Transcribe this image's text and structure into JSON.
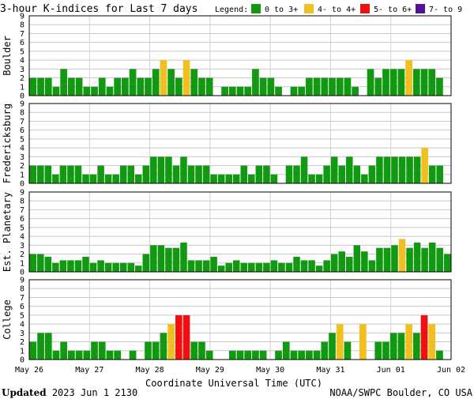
{
  "chart_data": {
    "type": "bar",
    "title": "3-hour K-indices for Last 7 days",
    "xlabel": "Coordinate Universal Time (UTC)",
    "x_tick_labels": [
      "May 26",
      "May 27",
      "May 28",
      "May 29",
      "May 30",
      "May 31",
      "Jun 01",
      "Jun 02"
    ],
    "ylim": [
      0,
      9
    ],
    "y_ticks": [
      "0",
      "1",
      "2",
      "3",
      "4",
      "5",
      "6",
      "7",
      "8",
      "9"
    ],
    "grid": true,
    "legend_placement": "top",
    "legend": {
      "title": "Legend:",
      "entries": [
        {
          "label": "0 to 3+",
          "color": "#119911"
        },
        {
          "label": "4- to 4+",
          "color": "#f0c020"
        },
        {
          "label": "5- to 6+",
          "color": "#ee1111"
        },
        {
          "label": "7- to 9",
          "color": "#551199"
        }
      ]
    },
    "panels": [
      {
        "label": "Boulder",
        "values": [
          2,
          2,
          2,
          1,
          3,
          2,
          2,
          1,
          1,
          2,
          1,
          2,
          2,
          3,
          2,
          2,
          3,
          4,
          3,
          2,
          4,
          3,
          2,
          2,
          0,
          1,
          1,
          1,
          1,
          3,
          2,
          2,
          1,
          0,
          1,
          1,
          2,
          2,
          2,
          2,
          2,
          2,
          1,
          0,
          3,
          2,
          3,
          3,
          3,
          4,
          3,
          3,
          3,
          2,
          0
        ]
      },
      {
        "label": "Fredericksburg",
        "values": [
          2,
          2,
          2,
          1,
          2,
          2,
          2,
          1,
          1,
          2,
          1,
          1,
          2,
          2,
          1,
          2,
          3,
          3,
          3,
          2,
          3,
          2,
          2,
          2,
          1,
          1,
          1,
          1,
          2,
          1,
          2,
          2,
          1,
          0,
          2,
          2,
          3,
          1,
          1,
          2,
          3,
          2,
          3,
          2,
          1,
          2,
          3,
          3,
          3,
          3,
          3,
          3,
          4,
          2,
          2,
          0
        ]
      },
      {
        "label": "Est. Planetary",
        "values": [
          2,
          2,
          1.7,
          1,
          1.3,
          1.3,
          1.3,
          1.7,
          1,
          1.3,
          1,
          1,
          1,
          1,
          0.7,
          2,
          3,
          3,
          2.7,
          2.7,
          3.3,
          1.3,
          1.3,
          1.3,
          1.7,
          0.7,
          1,
          1.3,
          1,
          1,
          1,
          1,
          1.3,
          1,
          1,
          1.7,
          1.3,
          1.3,
          0.7,
          1.3,
          2,
          2.3,
          1.7,
          3,
          2.3,
          1.3,
          2.7,
          2.7,
          3,
          3.7,
          2.7,
          3.3,
          2.7,
          3.3,
          2.7,
          2
        ]
      },
      {
        "label": "College",
        "values": [
          2,
          3,
          3,
          1,
          2,
          1,
          1,
          1,
          2,
          2,
          1,
          1,
          0,
          1,
          0,
          2,
          2,
          3,
          4,
          5,
          5,
          2,
          2,
          1,
          0,
          0,
          1,
          1,
          1,
          1,
          1,
          0,
          1,
          2,
          1,
          1,
          1,
          1,
          2,
          3,
          4,
          2,
          0,
          4,
          0,
          2,
          2,
          3,
          3,
          4,
          3,
          5,
          4,
          1,
          0
        ]
      }
    ]
  },
  "footer": {
    "updated_label": "Updated",
    "updated_value": "2023 Jun  1 2130",
    "source": "NOAA/SWPC Boulder, CO USA"
  }
}
